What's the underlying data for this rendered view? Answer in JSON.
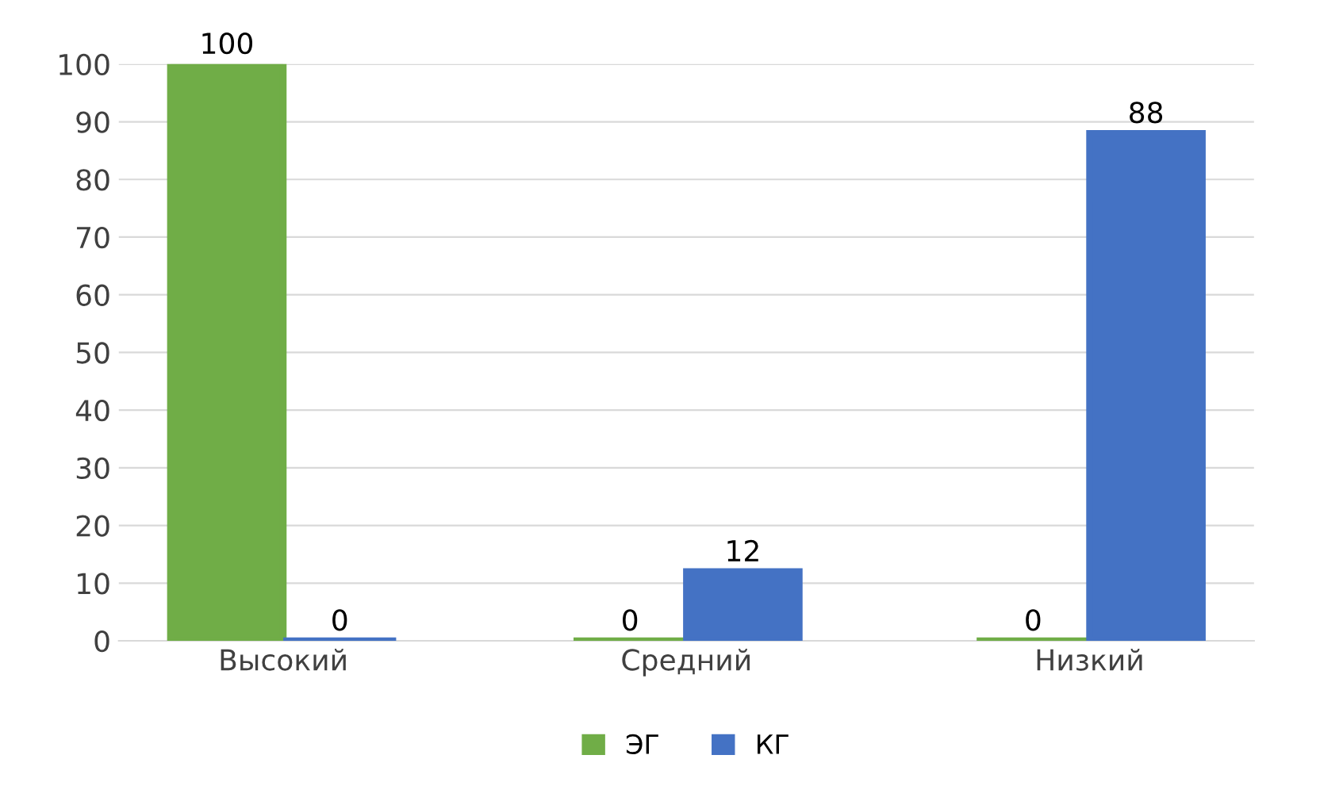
{
  "chart_data": {
    "type": "bar",
    "categories": [
      "Высокий",
      "Средний",
      "Низкий"
    ],
    "series": [
      {
        "name": "ЭГ",
        "color": "#70ad47",
        "values": [
          100,
          0,
          0
        ]
      },
      {
        "name": "КГ",
        "color": "#4472c4",
        "values": [
          0,
          12,
          88
        ]
      }
    ],
    "ylim": [
      0,
      100
    ],
    "yticks": [
      0,
      10,
      20,
      30,
      40,
      50,
      60,
      70,
      80,
      90,
      100
    ],
    "grid": "y",
    "legend": "bottom",
    "data_labels": true
  }
}
